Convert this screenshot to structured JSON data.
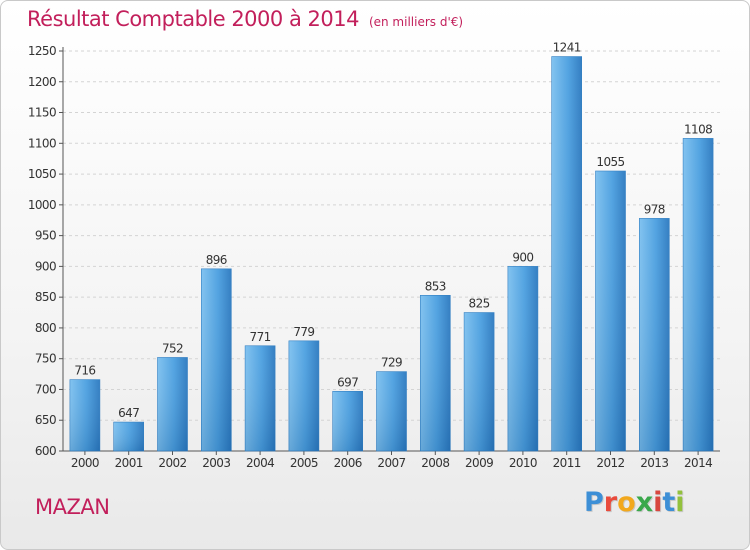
{
  "chart_data": {
    "type": "bar",
    "title": "Résultat Comptable 2000 à 2014",
    "subtitle": "(en milliers d'€)",
    "categories": [
      "2000",
      "2001",
      "2002",
      "2003",
      "2004",
      "2005",
      "2006",
      "2007",
      "2008",
      "2009",
      "2010",
      "2011",
      "2012",
      "2013",
      "2014"
    ],
    "values": [
      716,
      647,
      752,
      896,
      771,
      779,
      697,
      729,
      853,
      825,
      900,
      1241,
      1055,
      978,
      1108
    ],
    "ylim": [
      600,
      1250
    ],
    "yticks": [
      600,
      650,
      700,
      750,
      800,
      850,
      900,
      950,
      1000,
      1050,
      1100,
      1150,
      1200,
      1250
    ],
    "grid": true,
    "bar_color": "#4a9fe0"
  },
  "location": "MAZAN",
  "logo": {
    "letters": [
      "P",
      "r",
      "o",
      "x",
      "i",
      "t",
      "i"
    ],
    "colors": [
      "#3d8fd6",
      "#e94b3c",
      "#f2a81d",
      "#3aa84b",
      "#d8463f",
      "#3d8fd6",
      "#93c13d"
    ]
  }
}
